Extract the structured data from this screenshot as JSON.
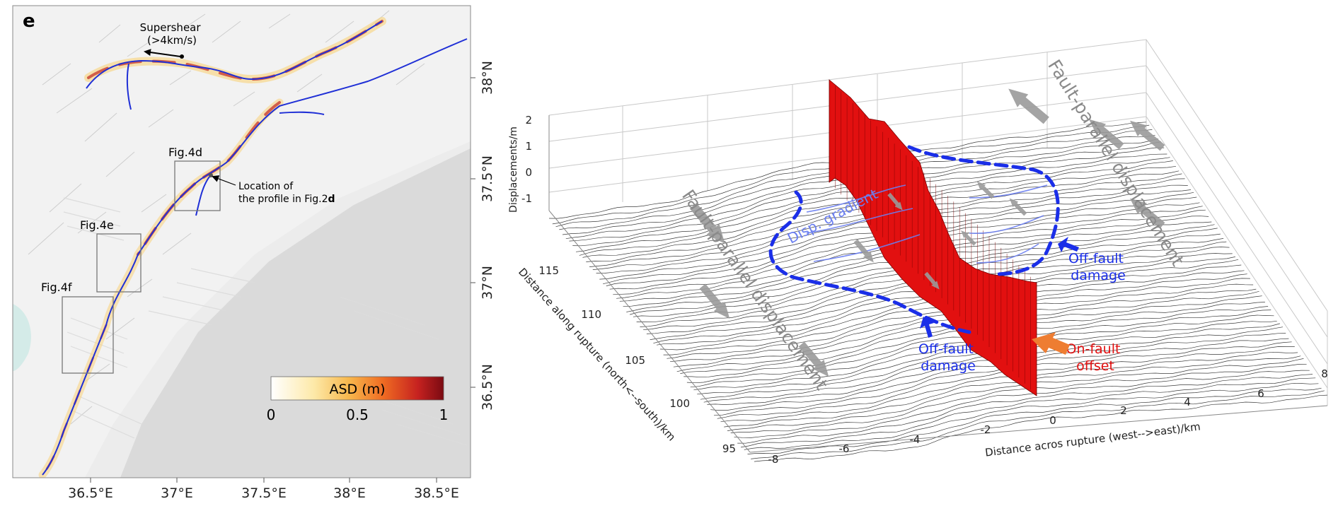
{
  "panel_e": {
    "panel_letter": "e",
    "supershear_label": [
      "Supershear",
      "(>4km/s)"
    ],
    "location_label": [
      "Location of",
      "the profile in Fig.2",
      "d"
    ],
    "box_labels": [
      "Fig.4d",
      "Fig.4e",
      "Fig.4f"
    ],
    "lat_ticks": [
      "38°N",
      "37.5°N",
      "37°N",
      "36.5°N"
    ],
    "lon_ticks": [
      "36.5°E",
      "37°E",
      "37.5°E",
      "38°E",
      "38.5°E"
    ],
    "colorbar": {
      "title": "ASD (m)",
      "ticks": [
        "0",
        "0.5",
        "1"
      ],
      "colors": [
        "#ffffff",
        "#fde9a8",
        "#f7b84d",
        "#ef6b22",
        "#c62220",
        "#7a0a12"
      ]
    },
    "colors": {
      "trace": "#1f2fd6",
      "hillshade": "#d8d8d8"
    }
  },
  "panel_3d": {
    "z_axis_label": "Displacements/m",
    "z_ticks": [
      "2",
      "1",
      "0",
      "-1"
    ],
    "y_axis_label": "Distance along rupture (north<--south)/km",
    "y_ticks": [
      "115",
      "110",
      "105",
      "100",
      "95"
    ],
    "x_axis_label": "Distance acros rupture (west-->east)/km",
    "x_ticks": [
      "-8",
      "-6",
      "-4",
      "-2",
      "0",
      "2",
      "4",
      "6",
      "8"
    ],
    "annotations": {
      "fault_parallel": "Fault-parallel displacement",
      "disp_gradient": "Disp. gradient",
      "off_fault_damage": [
        "Off-fault",
        "damage"
      ],
      "on_fault_offset": [
        "On-fault",
        "offset"
      ]
    },
    "colors": {
      "fault_wall": "#e21010",
      "dashed_outline": "#1a2ee8",
      "arrow": "#9a9a9a",
      "offset_arrow": "#ee7d31",
      "offset_text": "#e21010",
      "damage_text": "#1a2ee8"
    }
  }
}
